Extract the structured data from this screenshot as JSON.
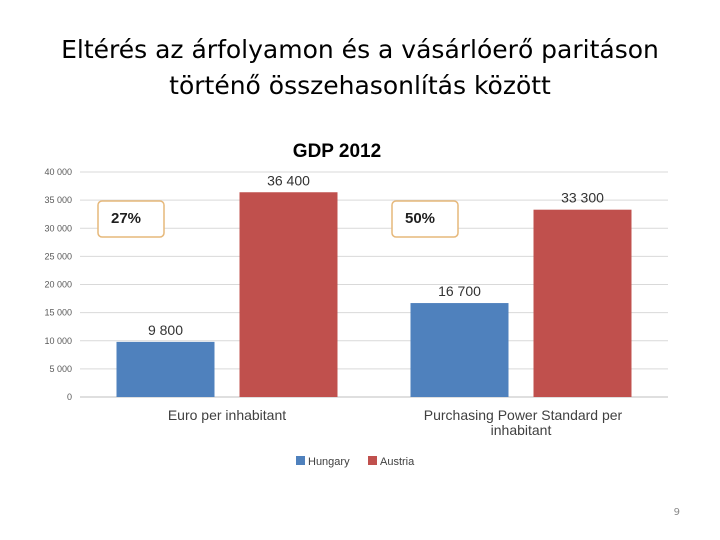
{
  "slide": {
    "title_line1": "Eltérés az árfolyamon és a vásárlóerő paritáson",
    "title_line2": "történő összehasonlítás között",
    "page_number": "9"
  },
  "colors": {
    "hungary": "#4f81bd",
    "austria": "#c0504d",
    "grid": "#d9d9d9",
    "callout_border": "#e6b87a"
  },
  "chart_data": {
    "type": "bar",
    "title": "GDP 2012",
    "categories": [
      "Euro per inhabitant",
      "Purchasing Power Standard  per inhabitant"
    ],
    "category_label_lines": [
      [
        "Euro per inhabitant"
      ],
      [
        "Purchasing Power Standard  per",
        "inhabitant"
      ]
    ],
    "series": [
      {
        "name": "Hungary",
        "values": [
          9800,
          16700
        ],
        "labels": [
          "9 800",
          "16 700"
        ]
      },
      {
        "name": "Austria",
        "values": [
          36400,
          33300
        ],
        "labels": [
          "36 400",
          "33 300"
        ]
      }
    ],
    "ylim": [
      0,
      40000
    ],
    "yticks": [
      0,
      5000,
      10000,
      15000,
      20000,
      25000,
      30000,
      35000,
      40000
    ],
    "ytick_labels": [
      "0",
      "5 000",
      "10 000",
      "15 000",
      "20 000",
      "25 000",
      "30 000",
      "35 000",
      "40 000"
    ],
    "grid": true,
    "legend_position": "bottom",
    "annotations": [
      "27%",
      "50%"
    ]
  }
}
